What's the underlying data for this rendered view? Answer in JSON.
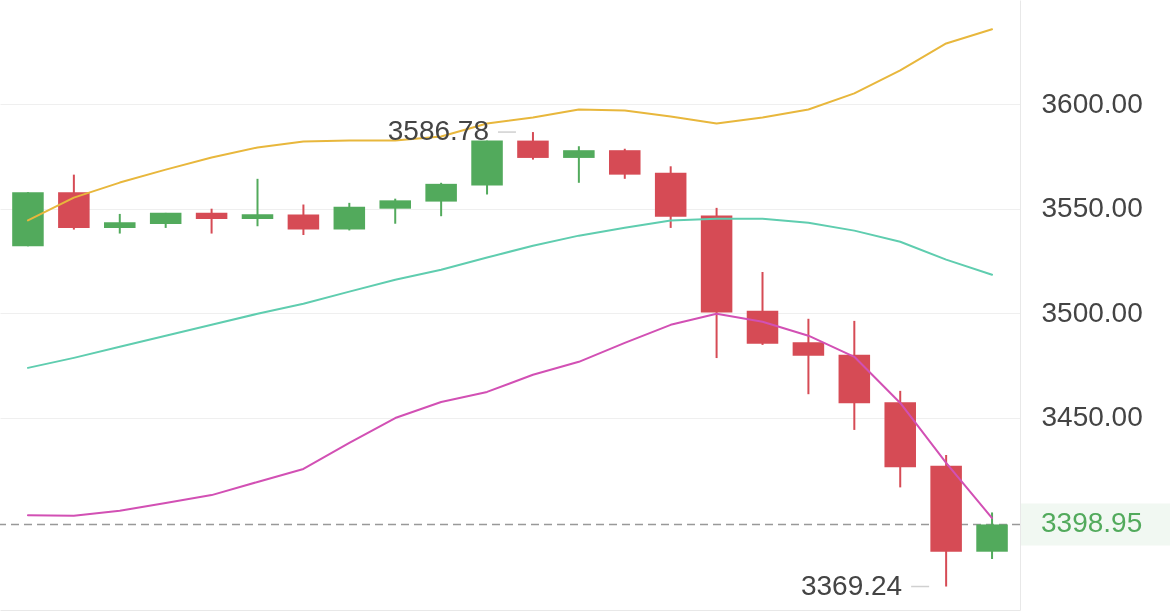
{
  "chart_data": {
    "type": "candlestick",
    "categories": [
      null,
      null,
      null,
      null,
      null,
      null,
      null,
      null,
      null,
      null,
      null,
      null,
      null,
      null,
      null,
      null,
      null,
      null,
      null,
      null,
      null,
      null
    ],
    "ohlc": [
      [
        3532.1,
        3558.0,
        3532.1,
        3558.0
      ],
      [
        3558.0,
        3566.4,
        3540.1,
        3540.9
      ],
      [
        3540.9,
        3547.6,
        3538.2,
        3543.6
      ],
      [
        3542.8,
        3548.1,
        3540.9,
        3548.1
      ],
      [
        3548.1,
        3550.1,
        3538.2,
        3545.2
      ],
      [
        3545.2,
        3564.4,
        3541.7,
        3547.4
      ],
      [
        3547.3,
        3552.1,
        3537.5,
        3540.1
      ],
      [
        3540.1,
        3552.9,
        3539.7,
        3551.0
      ],
      [
        3550.1,
        3554.9,
        3542.9,
        3554.1
      ],
      [
        3553.5,
        3562.5,
        3546.5,
        3562.0
      ],
      [
        3561.2,
        3582.7,
        3556.9,
        3582.7
      ],
      [
        3582.7,
        3586.78,
        3573.6,
        3574.4
      ],
      [
        3574.4,
        3580.0,
        3562.5,
        3578.1
      ],
      [
        3578.1,
        3578.8,
        3564.4,
        3566.4
      ],
      [
        3567.3,
        3570.4,
        3540.9,
        3546.2
      ],
      [
        3546.8,
        3550.5,
        3478.6,
        3500.4
      ],
      [
        3501.2,
        3519.8,
        3484.9,
        3485.4
      ],
      [
        3486.2,
        3497.4,
        3461.3,
        3479.7
      ],
      [
        3480.2,
        3496.4,
        3444.2,
        3457.0
      ],
      [
        3457.5,
        3462.9,
        3416.7,
        3426.3
      ],
      [
        3427.1,
        3432.2,
        3369.24,
        3385.9
      ],
      [
        3385.9,
        3404.7,
        3382.4,
        3398.95
      ]
    ],
    "colors": [
      "#52aa5c",
      "#d64b55",
      "#52aa5c",
      "#52aa5c",
      "#d64b55",
      "#52aa5c",
      "#d64b55",
      "#52aa5c",
      "#52aa5c",
      "#52aa5c",
      "#52aa5c",
      "#d64b55",
      "#52aa5c",
      "#d64b55",
      "#d64b55",
      "#d64b55",
      "#d64b55",
      "#d64b55",
      "#d64b55",
      "#d64b55",
      "#d64b55",
      "#52aa5c"
    ],
    "series": [
      {
        "type": "line",
        "color": "#e8b73c",
        "values": [
          3544.5,
          3555.4,
          3562.6,
          3568.8,
          3574.6,
          3579.4,
          3582.3,
          3582.7,
          3582.7,
          3584.7,
          3590.9,
          3593.8,
          3597.6,
          3597.1,
          3594.2,
          3590.9,
          3593.8,
          3597.6,
          3605.3,
          3616.3,
          3629.2,
          3636.0
        ]
      },
      {
        "type": "line",
        "color": "#5fcdaf",
        "values": [
          3473.9,
          3478.7,
          3484.0,
          3489.3,
          3494.5,
          3499.8,
          3504.6,
          3510.4,
          3516.1,
          3520.9,
          3526.7,
          3532.4,
          3537.2,
          3541.0,
          3544.4,
          3545.3,
          3545.3,
          3543.4,
          3539.6,
          3534.3,
          3525.7,
          3518.5
        ]
      },
      {
        "type": "line",
        "color": "#d250b4",
        "values": [
          3403.4,
          3403.1,
          3405.5,
          3409.2,
          3413.0,
          3419.3,
          3425.5,
          3438.0,
          3449.9,
          3457.6,
          3462.4,
          3470.6,
          3476.8,
          3485.9,
          3494.5,
          3499.8,
          3496.0,
          3489.3,
          3479.2,
          3457.1,
          3428.4,
          3402.0
        ]
      }
    ],
    "ylim": [
      3358,
      3650
    ],
    "yticks": [
      {
        "value": 3450,
        "label": "3450.00"
      },
      {
        "value": 3500,
        "label": "3500.00"
      },
      {
        "value": 3550,
        "label": "3550.00"
      },
      {
        "value": 3600,
        "label": "3600.00"
      }
    ],
    "grid": "y",
    "tick_labels": "y",
    "ref_lines": [
      {
        "axis": "y",
        "value": 3398.95,
        "label": "3398.95",
        "color": "#999999",
        "line_style": "dashed"
      }
    ],
    "annotations": [
      "3586.78",
      "3369.24"
    ]
  }
}
